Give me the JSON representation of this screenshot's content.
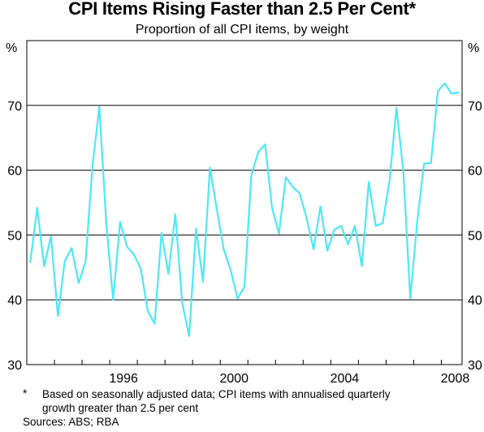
{
  "header": {
    "title": "CPI Items Rising Faster than 2.5 Per Cent*",
    "subtitle": "Proportion of all CPI items, by weight"
  },
  "footer": {
    "footnote_marker": "*",
    "footnote_line1": "Based on seasonally adjusted data; CPI items with annualised quarterly",
    "footnote_line2": "growth greater than 2.5 per cent",
    "sources": "Sources: ABS; RBA"
  },
  "colors": {
    "line": "#4de8f5",
    "grid": "#000000",
    "background": "#ffffff"
  },
  "chart_data": {
    "type": "line",
    "title": "CPI Items Rising Faster than 2.5 Per Cent*",
    "subtitle": "Proportion of all CPI items, by weight",
    "ylabel_left": "%",
    "ylabel_right": "%",
    "ylim": [
      30,
      80
    ],
    "yticks": [
      30,
      40,
      50,
      60,
      70
    ],
    "xlim": [
      1993.0,
      2008.75
    ],
    "xticks": [
      1996,
      2000,
      2004,
      2008
    ],
    "grid": true,
    "series": [
      {
        "values": [
          {
            "x": 1993.125,
            "y": 45.8
          },
          {
            "x": 1993.375,
            "y": 54.2
          },
          {
            "x": 1993.625,
            "y": 45.2
          },
          {
            "x": 1993.875,
            "y": 49.8
          },
          {
            "x": 1994.125,
            "y": 37.5
          },
          {
            "x": 1994.375,
            "y": 46.0
          },
          {
            "x": 1994.625,
            "y": 48.0
          },
          {
            "x": 1994.875,
            "y": 42.6
          },
          {
            "x": 1995.125,
            "y": 45.8
          },
          {
            "x": 1995.375,
            "y": 60.5
          },
          {
            "x": 1995.625,
            "y": 69.8
          },
          {
            "x": 1995.875,
            "y": 52.0
          },
          {
            "x": 1996.125,
            "y": 40.0
          },
          {
            "x": 1996.375,
            "y": 52.0
          },
          {
            "x": 1996.625,
            "y": 48.2
          },
          {
            "x": 1996.875,
            "y": 47.0
          },
          {
            "x": 1997.125,
            "y": 44.8
          },
          {
            "x": 1997.375,
            "y": 38.3
          },
          {
            "x": 1997.625,
            "y": 36.3
          },
          {
            "x": 1997.875,
            "y": 50.3
          },
          {
            "x": 1998.125,
            "y": 44.0
          },
          {
            "x": 1998.375,
            "y": 53.2
          },
          {
            "x": 1998.625,
            "y": 39.5
          },
          {
            "x": 1998.875,
            "y": 34.4
          },
          {
            "x": 1999.125,
            "y": 51.0
          },
          {
            "x": 1999.375,
            "y": 42.8
          },
          {
            "x": 1999.625,
            "y": 60.4
          },
          {
            "x": 1999.875,
            "y": 54.0
          },
          {
            "x": 2000.125,
            "y": 47.8
          },
          {
            "x": 2000.375,
            "y": 44.6
          },
          {
            "x": 2000.625,
            "y": 40.2
          },
          {
            "x": 2000.875,
            "y": 42.0
          },
          {
            "x": 2001.125,
            "y": 59.2
          },
          {
            "x": 2001.375,
            "y": 62.8
          },
          {
            "x": 2001.625,
            "y": 64.0
          },
          {
            "x": 2001.875,
            "y": 54.2
          },
          {
            "x": 2002.125,
            "y": 50.2
          },
          {
            "x": 2002.375,
            "y": 58.9
          },
          {
            "x": 2002.625,
            "y": 57.4
          },
          {
            "x": 2002.875,
            "y": 56.4
          },
          {
            "x": 2003.125,
            "y": 52.6
          },
          {
            "x": 2003.375,
            "y": 47.8
          },
          {
            "x": 2003.625,
            "y": 54.4
          },
          {
            "x": 2003.875,
            "y": 47.6
          },
          {
            "x": 2004.125,
            "y": 50.8
          },
          {
            "x": 2004.375,
            "y": 51.4
          },
          {
            "x": 2004.625,
            "y": 48.6
          },
          {
            "x": 2004.875,
            "y": 51.4
          },
          {
            "x": 2005.125,
            "y": 45.2
          },
          {
            "x": 2005.375,
            "y": 58.2
          },
          {
            "x": 2005.625,
            "y": 51.4
          },
          {
            "x": 2005.875,
            "y": 51.8
          },
          {
            "x": 2006.125,
            "y": 58.4
          },
          {
            "x": 2006.375,
            "y": 69.6
          },
          {
            "x": 2006.625,
            "y": 59.8
          },
          {
            "x": 2006.875,
            "y": 40.2
          },
          {
            "x": 2007.125,
            "y": 52.0
          },
          {
            "x": 2007.375,
            "y": 61.0
          },
          {
            "x": 2007.625,
            "y": 61.1
          },
          {
            "x": 2007.875,
            "y": 72.2
          },
          {
            "x": 2008.125,
            "y": 73.4
          },
          {
            "x": 2008.375,
            "y": 71.8
          },
          {
            "x": 2008.625,
            "y": 72.0
          }
        ]
      }
    ]
  }
}
